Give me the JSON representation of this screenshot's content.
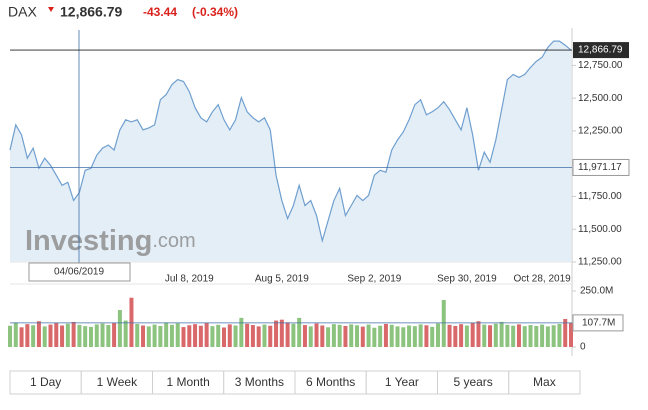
{
  "chart_data": {
    "type": "area",
    "title": "DAX",
    "last": {
      "value": 12866.79,
      "label": "12,866.79"
    },
    "change": "-43.44",
    "change_percent": "(-0.34%)",
    "color": "#6f9fcf",
    "fill_color": "#e4eef7",
    "categories": [
      null,
      null,
      null,
      null,
      null,
      null,
      null,
      null,
      null,
      null,
      null,
      null,
      null,
      null,
      null,
      null,
      null,
      null,
      null,
      null,
      null,
      null,
      null,
      null,
      null,
      null,
      null,
      null,
      null,
      null,
      null,
      "Jul 8, 2019",
      null,
      null,
      null,
      null,
      null,
      null,
      null,
      null,
      null,
      null,
      null,
      null,
      null,
      null,
      null,
      "Aug 5, 2019",
      null,
      null,
      null,
      null,
      null,
      null,
      null,
      null,
      null,
      null,
      null,
      null,
      null,
      null,
      null,
      "Sep 2, 2019",
      null,
      null,
      null,
      null,
      null,
      null,
      null,
      null,
      null,
      null,
      null,
      null,
      null,
      null,
      null,
      "Sep 30, 2019",
      null,
      null,
      null,
      null,
      null,
      null,
      null,
      null,
      null,
      null,
      null,
      null,
      "Oct 28, 2019",
      null,
      null,
      null,
      null,
      null
    ],
    "values": [
      12104,
      12296,
      12219,
      12042,
      12119,
      11965,
      12042,
      11988,
      11912,
      11835,
      11858,
      11719,
      11781,
      11950,
      11965,
      12065,
      12119,
      12142,
      12104,
      12258,
      12335,
      12319,
      12335,
      12258,
      12273,
      12296,
      12488,
      12527,
      12604,
      12642,
      12627,
      12550,
      12427,
      12350,
      12319,
      12396,
      12450,
      12335,
      12258,
      12335,
      12504,
      12396,
      12350,
      12319,
      12350,
      12258,
      11912,
      11719,
      11581,
      11681,
      11835,
      11681,
      11719,
      11604,
      11412,
      11565,
      11719,
      11812,
      11604,
      11681,
      11758,
      11719,
      11758,
      11912,
      11950,
      11935,
      12104,
      12181,
      12242,
      12335,
      12450,
      12488,
      12373,
      12396,
      12427,
      12473,
      12412,
      12335,
      12258,
      12427,
      12219,
      11950,
      12088,
      12011,
      12181,
      12412,
      12642,
      12681,
      12658,
      12681,
      12735,
      12781,
      12812,
      12888,
      12935,
      12935,
      12904,
      12866.79
    ],
    "ylim": [
      11250,
      13020
    ],
    "yticks": [
      {
        "value": 11250,
        "label": "11,250.00"
      },
      {
        "value": 11500,
        "label": "11,500.00"
      },
      {
        "value": 11750,
        "label": "11,750.00"
      },
      {
        "value": 12250,
        "label": "12,250.00"
      },
      {
        "value": 12500,
        "label": "12,500.00"
      },
      {
        "value": 12750,
        "label": "12,750.00"
      }
    ],
    "crosshair": {
      "x_label": "04/06/2019",
      "value": 11971.17,
      "label": "11,971.17"
    },
    "watermark": {
      "brand": "Investing",
      "suffix": ".com"
    },
    "volume": {
      "type": "bar",
      "up_color": "#8cc47f",
      "down_color": "#d9686a",
      "values": [
        95,
        110,
        88,
        102,
        97,
        115,
        92,
        100,
        108,
        96,
        104,
        112,
        99,
        93,
        90,
        101,
        105,
        98,
        107,
        165,
        118,
        220,
        103,
        96,
        92,
        100,
        94,
        110,
        99,
        106,
        89,
        97,
        102,
        95,
        108,
        93,
        99,
        87,
        101,
        96,
        130,
        104,
        98,
        92,
        100,
        95,
        118,
        122,
        110,
        104,
        130,
        98,
        92,
        105,
        96,
        88,
        102,
        99,
        94,
        101,
        97,
        91,
        100,
        86,
        95,
        103,
        99,
        92,
        88,
        96,
        93,
        101,
        97,
        90,
        105,
        210,
        99,
        94,
        102,
        96,
        108,
        115,
        100,
        97,
        104,
        112,
        99,
        95,
        101,
        93,
        98,
        94,
        100,
        92,
        97,
        103,
        125,
        107.7
      ],
      "ylim": [
        0,
        250
      ],
      "yticks": [
        0,
        {
          "value": 250,
          "label": "250.0M"
        }
      ],
      "last": {
        "value": 107.7,
        "label": "107.7M"
      }
    }
  },
  "range_buttons": [
    "1 Day",
    "1 Week",
    "1 Month",
    "3 Months",
    "6 Months",
    "1 Year",
    "5 years",
    "Max"
  ]
}
